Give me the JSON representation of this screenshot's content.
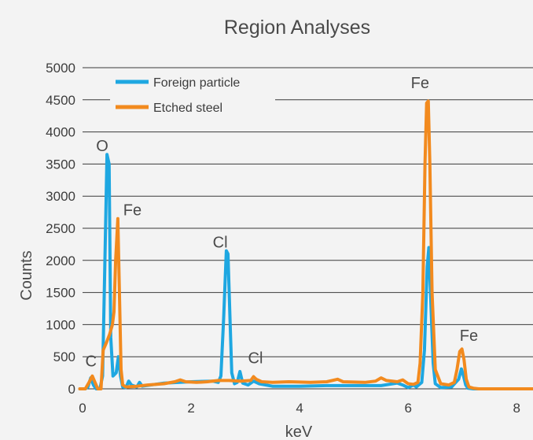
{
  "chart_data": {
    "type": "line",
    "title": "Region Analyses",
    "xlabel": "keV",
    "ylabel": "Counts",
    "xlim": [
      0,
      8.3
    ],
    "ylim": [
      0,
      5000
    ],
    "xticks": [
      0,
      2,
      4,
      6,
      8
    ],
    "yticks": [
      0,
      500,
      1000,
      1500,
      2000,
      2500,
      3000,
      3500,
      4000,
      4500,
      5000
    ],
    "grid": "horizontal",
    "legend_position": "top-left",
    "series": [
      {
        "name": "Foreign particle",
        "color": "#1ea7e1",
        "points": [
          [
            -0.05,
            0
          ],
          [
            0.05,
            0
          ],
          [
            0.1,
            30
          ],
          [
            0.15,
            170
          ],
          [
            0.2,
            60
          ],
          [
            0.25,
            0
          ],
          [
            0.32,
            0
          ],
          [
            0.37,
            200
          ],
          [
            0.41,
            1900
          ],
          [
            0.45,
            3650
          ],
          [
            0.49,
            3500
          ],
          [
            0.52,
            800
          ],
          [
            0.56,
            200
          ],
          [
            0.62,
            250
          ],
          [
            0.66,
            500
          ],
          [
            0.7,
            200
          ],
          [
            0.74,
            30
          ],
          [
            0.8,
            20
          ],
          [
            0.85,
            120
          ],
          [
            0.9,
            60
          ],
          [
            1.0,
            30
          ],
          [
            1.05,
            100
          ],
          [
            1.1,
            40
          ],
          [
            1.5,
            90
          ],
          [
            2.0,
            110
          ],
          [
            2.4,
            120
          ],
          [
            2.5,
            100
          ],
          [
            2.55,
            200
          ],
          [
            2.6,
            1100
          ],
          [
            2.65,
            2150
          ],
          [
            2.68,
            2100
          ],
          [
            2.72,
            1000
          ],
          [
            2.75,
            250
          ],
          [
            2.8,
            80
          ],
          [
            2.85,
            100
          ],
          [
            2.9,
            270
          ],
          [
            2.95,
            90
          ],
          [
            3.05,
            60
          ],
          [
            3.15,
            120
          ],
          [
            3.25,
            80
          ],
          [
            3.5,
            40
          ],
          [
            4.0,
            40
          ],
          [
            4.5,
            50
          ],
          [
            5.0,
            50
          ],
          [
            5.5,
            50
          ],
          [
            5.8,
            90
          ],
          [
            5.9,
            60
          ],
          [
            6.0,
            20
          ],
          [
            6.1,
            60
          ],
          [
            6.15,
            30
          ],
          [
            6.25,
            100
          ],
          [
            6.3,
            600
          ],
          [
            6.35,
            1900
          ],
          [
            6.38,
            2200
          ],
          [
            6.42,
            1300
          ],
          [
            6.46,
            400
          ],
          [
            6.5,
            80
          ],
          [
            6.6,
            20
          ],
          [
            6.8,
            30
          ],
          [
            6.93,
            150
          ],
          [
            6.98,
            310
          ],
          [
            7.02,
            200
          ],
          [
            7.06,
            60
          ],
          [
            7.1,
            10
          ],
          [
            7.2,
            0
          ],
          [
            8.4,
            0
          ]
        ]
      },
      {
        "name": "Etched steel",
        "color": "#f28a1e",
        "points": [
          [
            -0.05,
            0
          ],
          [
            0.05,
            0
          ],
          [
            0.12,
            100
          ],
          [
            0.18,
            200
          ],
          [
            0.24,
            80
          ],
          [
            0.28,
            0
          ],
          [
            0.34,
            0
          ],
          [
            0.38,
            600
          ],
          [
            0.44,
            720
          ],
          [
            0.5,
            850
          ],
          [
            0.55,
            1000
          ],
          [
            0.58,
            1200
          ],
          [
            0.61,
            2000
          ],
          [
            0.65,
            2650
          ],
          [
            0.68,
            1500
          ],
          [
            0.71,
            300
          ],
          [
            0.74,
            60
          ],
          [
            0.8,
            30
          ],
          [
            1.0,
            40
          ],
          [
            1.2,
            60
          ],
          [
            1.5,
            80
          ],
          [
            1.7,
            110
          ],
          [
            1.8,
            140
          ],
          [
            1.9,
            110
          ],
          [
            2.1,
            100
          ],
          [
            2.3,
            110
          ],
          [
            2.5,
            130
          ],
          [
            2.7,
            130
          ],
          [
            2.9,
            120
          ],
          [
            3.1,
            130
          ],
          [
            3.15,
            190
          ],
          [
            3.2,
            150
          ],
          [
            3.3,
            110
          ],
          [
            3.5,
            100
          ],
          [
            3.8,
            110
          ],
          [
            4.2,
            100
          ],
          [
            4.5,
            110
          ],
          [
            4.7,
            150
          ],
          [
            4.8,
            110
          ],
          [
            5.2,
            100
          ],
          [
            5.4,
            120
          ],
          [
            5.5,
            170
          ],
          [
            5.6,
            130
          ],
          [
            5.8,
            110
          ],
          [
            5.9,
            140
          ],
          [
            6.0,
            80
          ],
          [
            6.1,
            70
          ],
          [
            6.18,
            100
          ],
          [
            6.22,
            400
          ],
          [
            6.27,
            1500
          ],
          [
            6.31,
            3500
          ],
          [
            6.34,
            4450
          ],
          [
            6.37,
            4480
          ],
          [
            6.4,
            3500
          ],
          [
            6.44,
            1500
          ],
          [
            6.5,
            300
          ],
          [
            6.6,
            80
          ],
          [
            6.75,
            60
          ],
          [
            6.85,
            100
          ],
          [
            6.9,
            300
          ],
          [
            6.95,
            580
          ],
          [
            6.99,
            620
          ],
          [
            7.03,
            450
          ],
          [
            7.07,
            150
          ],
          [
            7.12,
            30
          ],
          [
            7.2,
            10
          ],
          [
            7.3,
            0
          ],
          [
            8.4,
            0
          ]
        ]
      }
    ],
    "annotations": [
      {
        "text": "C",
        "x": 0.05,
        "y": 350
      },
      {
        "text": "O",
        "x": 0.25,
        "y": 3700
      },
      {
        "text": "Fe",
        "x": 0.75,
        "y": 2700
      },
      {
        "text": "Cl",
        "x": 2.4,
        "y": 2200
      },
      {
        "text": "Cl",
        "x": 3.05,
        "y": 400
      },
      {
        "text": "Fe",
        "x": 6.05,
        "y": 4680
      },
      {
        "text": "Fe",
        "x": 6.95,
        "y": 750
      }
    ]
  }
}
